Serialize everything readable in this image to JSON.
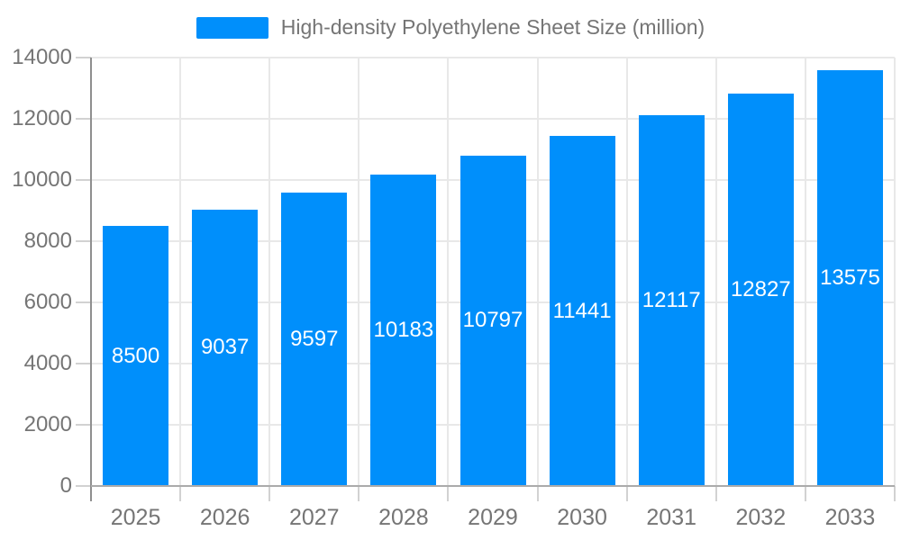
{
  "legend": {
    "label": "High-density Polyethylene Sheet Size (million)"
  },
  "colors": {
    "bar": "#008FFB",
    "bar_label": "#ffffff",
    "axis_text": "#757575",
    "gridline": "#e8e8e8",
    "tick": "#d2d2d2",
    "y_axis_line": "#8f8f8f",
    "x_axis_line": "#ababab",
    "background": "#ffffff"
  },
  "chart_data": {
    "type": "bar",
    "title": "",
    "categories": [
      "2025",
      "2026",
      "2027",
      "2028",
      "2029",
      "2030",
      "2031",
      "2032",
      "2033"
    ],
    "series": [
      {
        "name": "High-density Polyethylene Sheet Size (million)",
        "values": [
          8500,
          9037,
          9597,
          10183,
          10797,
          11441,
          12117,
          12827,
          13575
        ]
      }
    ],
    "bar_value_labels": [
      "8500",
      "9037",
      "9597",
      "10183",
      "10797",
      "11441",
      "12117",
      "12827",
      "13575"
    ],
    "xlabel": "",
    "ylabel": "",
    "ylim": [
      0,
      14000
    ],
    "ytick_step": 2000,
    "ytick_labels": [
      "0",
      "2000",
      "4000",
      "6000",
      "8000",
      "10000",
      "12000",
      "14000"
    ],
    "grid": true,
    "legend_position": "top",
    "value_label_position": "inside-center"
  }
}
